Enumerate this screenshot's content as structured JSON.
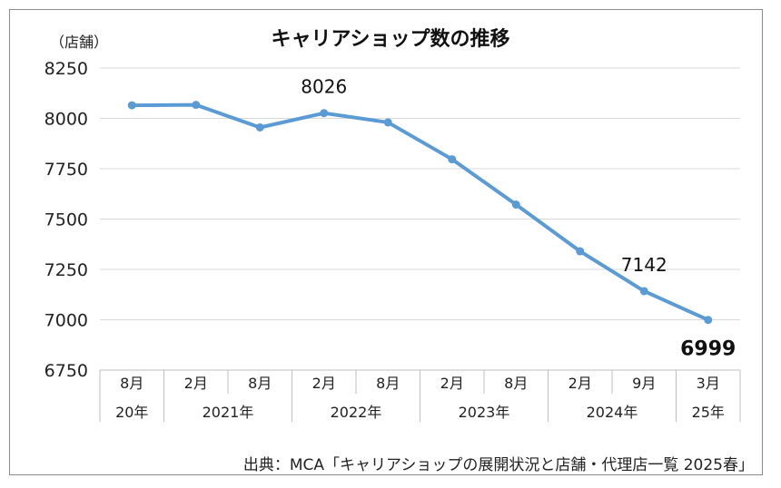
{
  "chart_data": {
    "type": "line",
    "title": "キャリアショップ数の推移",
    "ylabel": "（店舗）",
    "ylim": [
      6750,
      8250
    ],
    "yticks": [
      8250,
      8000,
      7750,
      7500,
      7250,
      7000,
      6750
    ],
    "grid": true,
    "line_color": "#5b9bd5",
    "categories": [
      "8月",
      "2月",
      "8月",
      "2月",
      "8月",
      "2月",
      "8月",
      "2月",
      "9月",
      "3月"
    ],
    "year_groups": [
      {
        "label": "20年",
        "span": 1
      },
      {
        "label": "2021年",
        "span": 2
      },
      {
        "label": "2022年",
        "span": 2
      },
      {
        "label": "2023年",
        "span": 2
      },
      {
        "label": "2024年",
        "span": 2
      },
      {
        "label": "25年",
        "span": 1
      }
    ],
    "values": [
      8065,
      8067,
      7955,
      8026,
      7980,
      7797,
      7572,
      7340,
      7142,
      6999
    ],
    "data_labels": [
      {
        "index": 3,
        "text": "8026",
        "bold": false
      },
      {
        "index": 8,
        "text": "7142",
        "bold": false
      },
      {
        "index": 9,
        "text": "6999",
        "bold": true
      }
    ]
  },
  "source": "出典：MCA「キャリアショップの展開状況と店舗・代理店一覧 2025春」"
}
